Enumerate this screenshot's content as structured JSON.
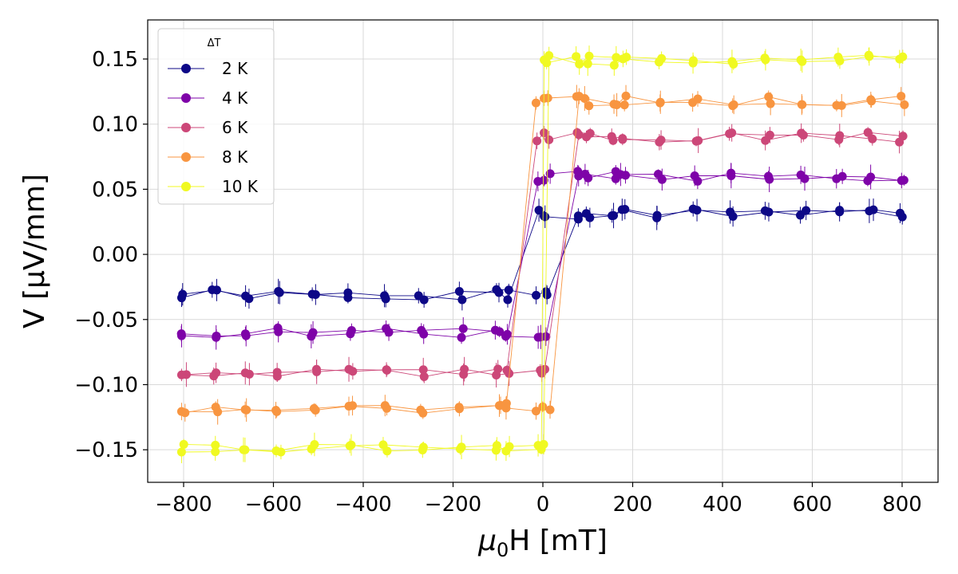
{
  "chart_data": {
    "type": "scatter",
    "title": "",
    "xlabel_symbol": "μ",
    "xlabel_subscript": "0",
    "xlabel_rest": "H [mT]",
    "ylabel": "V [μV/mm]",
    "xlim": [
      -880,
      880
    ],
    "ylim": [
      -0.175,
      0.18
    ],
    "xticks": [
      -800,
      -600,
      -400,
      -200,
      0,
      200,
      400,
      600,
      800
    ],
    "xtick_labels": [
      "−800",
      "−600",
      "−400",
      "−200",
      "0",
      "200",
      "400",
      "600",
      "800"
    ],
    "yticks": [
      -0.15,
      -0.1,
      -0.05,
      0.0,
      0.05,
      0.1,
      0.15
    ],
    "ytick_labels": [
      "−0.15",
      "−0.10",
      "−0.05",
      "0.00",
      "0.05",
      "0.10",
      "0.15"
    ],
    "grid": true,
    "legend": {
      "title": "ΔT",
      "position": "top-left"
    },
    "series": [
      {
        "name": "2 K",
        "color": "#0d0887",
        "level": 0.031,
        "neg_jump": -30,
        "pos_jump": 30,
        "noise_seed": 1
      },
      {
        "name": "4 K",
        "color": "#7e03a8",
        "level": 0.06,
        "neg_jump": -25,
        "pos_jump": 25,
        "noise_seed": 2
      },
      {
        "name": "6 K",
        "color": "#cc4778",
        "level": 0.09,
        "neg_jump": -20,
        "pos_jump": 20,
        "noise_seed": 3
      },
      {
        "name": "8 K",
        "color": "#f89540",
        "level": 0.118,
        "neg_jump": -15,
        "pos_jump": 15,
        "noise_seed": 4
      },
      {
        "name": "10 K",
        "color": "#f0f921",
        "level": 0.149,
        "neg_jump": -10,
        "pos_jump": 10,
        "noise_seed": 5
      }
    ],
    "x_sweep": [
      -800,
      -730,
      -660,
      -590,
      -510,
      -430,
      -350,
      -270,
      -180,
      -100,
      -80,
      -10,
      0,
      10,
      80,
      100,
      160,
      180,
      260,
      340,
      420,
      500,
      580,
      660,
      730,
      800
    ]
  }
}
